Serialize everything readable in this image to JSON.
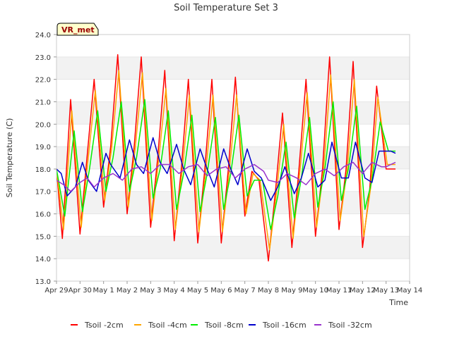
{
  "chart_data": {
    "type": "line",
    "title": "Soil Temperature Set 3",
    "xlabel": "Time",
    "ylabel": "Soil Temperature (C)",
    "site_label": "VR_met",
    "ylim": [
      13.0,
      24.0
    ],
    "yticks": [
      "13.0",
      "14.0",
      "15.0",
      "16.0",
      "17.0",
      "18.0",
      "19.0",
      "20.0",
      "21.0",
      "22.0",
      "23.0",
      "24.0"
    ],
    "xlim_days": [
      0,
      15
    ],
    "xticks": [
      "Apr 29",
      "Apr 30",
      "May 1",
      "May 2",
      "May 3",
      "May 4",
      "May 5",
      "May 6",
      "May 7",
      "May 8",
      "May 9",
      "May 10",
      "May 11",
      "May 12",
      "May 13",
      "May 14"
    ],
    "grid": "alternating horizontal bands",
    "legend_position": "bottom",
    "colors": {
      "Tsoil -2cm": "#ff0000",
      "Tsoil -4cm": "#ffa500",
      "Tsoil -8cm": "#00ee00",
      "Tsoil -16cm": "#0000cc",
      "Tsoil -32cm": "#9933cc"
    },
    "series": [
      {
        "name": "Tsoil -2cm",
        "x": [
          0.0,
          0.25,
          0.6,
          1.0,
          1.25,
          1.6,
          2.0,
          2.3,
          2.6,
          3.0,
          3.3,
          3.6,
          4.0,
          4.3,
          4.6,
          5.0,
          5.3,
          5.6,
          6.0,
          6.3,
          6.6,
          7.0,
          7.3,
          7.6,
          8.0,
          8.3,
          8.6,
          9.0,
          9.3,
          9.6,
          10.0,
          10.3,
          10.6,
          11.0,
          11.3,
          11.6,
          12.0,
          12.3,
          12.6,
          13.0,
          13.3,
          13.6,
          14.0,
          14.3,
          14.4
        ],
        "values": [
          18.0,
          14.9,
          21.1,
          15.1,
          18.0,
          22.0,
          16.3,
          19.0,
          23.1,
          16.0,
          19.0,
          23.0,
          15.4,
          18.5,
          22.4,
          14.8,
          18.0,
          22.0,
          14.7,
          18.0,
          22.0,
          14.7,
          18.0,
          22.1,
          15.9,
          17.9,
          17.5,
          13.9,
          17.0,
          20.5,
          14.5,
          18.0,
          22.0,
          15.0,
          18.0,
          23.0,
          15.3,
          18.0,
          22.8,
          14.5,
          17.0,
          21.7,
          18.0,
          18.0,
          18.0
        ]
      },
      {
        "name": "Tsoil -4cm",
        "x": [
          0.0,
          0.3,
          0.65,
          1.05,
          1.3,
          1.65,
          2.05,
          2.35,
          2.65,
          3.05,
          3.35,
          3.65,
          4.05,
          4.35,
          4.65,
          5.05,
          5.35,
          5.65,
          6.05,
          6.35,
          6.65,
          7.05,
          7.35,
          7.65,
          8.05,
          8.35,
          8.65,
          9.05,
          9.35,
          9.65,
          10.05,
          10.35,
          10.65,
          11.05,
          11.35,
          11.65,
          12.05,
          12.35,
          12.65,
          13.05,
          13.35,
          13.65,
          14.05,
          14.3,
          14.4
        ],
        "values": [
          18.0,
          15.3,
          20.6,
          15.4,
          18.0,
          21.5,
          16.6,
          19.0,
          22.4,
          16.3,
          19.0,
          22.3,
          15.7,
          18.5,
          21.6,
          15.3,
          18.0,
          21.3,
          15.2,
          18.0,
          21.3,
          15.2,
          18.0,
          21.3,
          16.0,
          17.8,
          17.5,
          14.4,
          17.0,
          20.0,
          14.9,
          18.0,
          21.4,
          15.4,
          18.0,
          22.2,
          15.7,
          18.0,
          22.0,
          15.0,
          17.2,
          21.2,
          18.2,
          18.2,
          18.2
        ]
      },
      {
        "name": "Tsoil -8cm",
        "x": [
          0.0,
          0.35,
          0.75,
          1.1,
          1.4,
          1.75,
          2.1,
          2.4,
          2.75,
          3.1,
          3.4,
          3.75,
          4.1,
          4.4,
          4.75,
          5.1,
          5.4,
          5.75,
          6.1,
          6.4,
          6.75,
          7.1,
          7.4,
          7.75,
          8.1,
          8.4,
          8.75,
          9.1,
          9.4,
          9.75,
          10.1,
          10.4,
          10.75,
          11.1,
          11.4,
          11.75,
          12.1,
          12.4,
          12.75,
          13.1,
          13.4,
          13.75,
          14.1,
          14.3,
          14.4
        ],
        "values": [
          18.0,
          15.9,
          19.7,
          16.1,
          18.0,
          20.6,
          17.0,
          18.5,
          21.0,
          17.0,
          18.5,
          21.1,
          16.7,
          18.0,
          20.6,
          16.2,
          17.8,
          20.4,
          16.1,
          17.8,
          20.3,
          16.2,
          17.8,
          20.4,
          16.8,
          17.5,
          17.5,
          15.3,
          16.8,
          19.2,
          15.8,
          17.6,
          20.3,
          16.3,
          18.0,
          21.0,
          16.6,
          18.0,
          20.8,
          16.2,
          17.5,
          20.1,
          18.8,
          18.8,
          18.8
        ]
      },
      {
        "name": "Tsoil -16cm",
        "x": [
          0.0,
          0.2,
          0.45,
          0.8,
          1.1,
          1.35,
          1.7,
          2.1,
          2.3,
          2.7,
          3.1,
          3.4,
          3.7,
          4.1,
          4.4,
          4.7,
          5.1,
          5.4,
          5.7,
          6.1,
          6.4,
          6.7,
          7.1,
          7.4,
          7.7,
          8.1,
          8.4,
          8.7,
          9.1,
          9.4,
          9.7,
          10.1,
          10.4,
          10.7,
          11.1,
          11.4,
          11.7,
          12.1,
          12.4,
          12.7,
          13.1,
          13.4,
          13.7,
          14.0,
          14.2,
          14.4
        ],
        "values": [
          18.0,
          17.8,
          16.8,
          17.2,
          18.3,
          17.5,
          17.0,
          18.7,
          18.2,
          17.6,
          19.3,
          18.2,
          17.8,
          19.4,
          18.3,
          17.8,
          19.1,
          18.0,
          17.3,
          18.9,
          18.0,
          17.2,
          18.9,
          18.0,
          17.3,
          18.9,
          17.9,
          17.6,
          16.6,
          17.2,
          18.1,
          16.9,
          17.6,
          18.7,
          17.2,
          17.5,
          19.2,
          17.6,
          17.6,
          19.2,
          17.6,
          17.4,
          18.8,
          18.8,
          18.8,
          18.7
        ]
      },
      {
        "name": "Tsoil -32cm",
        "x": [
          0.0,
          0.3,
          0.6,
          1.0,
          1.3,
          1.6,
          2.0,
          2.4,
          2.8,
          3.2,
          3.6,
          4.0,
          4.4,
          4.8,
          5.2,
          5.6,
          6.0,
          6.4,
          6.8,
          7.2,
          7.6,
          8.0,
          8.4,
          8.8,
          9.0,
          9.4,
          9.8,
          10.2,
          10.6,
          11.0,
          11.4,
          11.8,
          12.2,
          12.6,
          13.0,
          13.4,
          13.8,
          14.0,
          14.2,
          14.4
        ],
        "values": [
          17.5,
          17.3,
          17.0,
          17.4,
          17.6,
          17.2,
          17.6,
          17.8,
          17.5,
          18.0,
          18.1,
          17.8,
          18.2,
          18.2,
          17.8,
          18.1,
          18.2,
          17.7,
          18.0,
          18.1,
          17.6,
          18.0,
          18.2,
          17.9,
          17.5,
          17.4,
          17.8,
          17.6,
          17.3,
          17.8,
          18.0,
          17.7,
          18.1,
          18.3,
          17.8,
          18.3,
          18.1,
          18.1,
          18.2,
          18.3
        ]
      }
    ]
  }
}
